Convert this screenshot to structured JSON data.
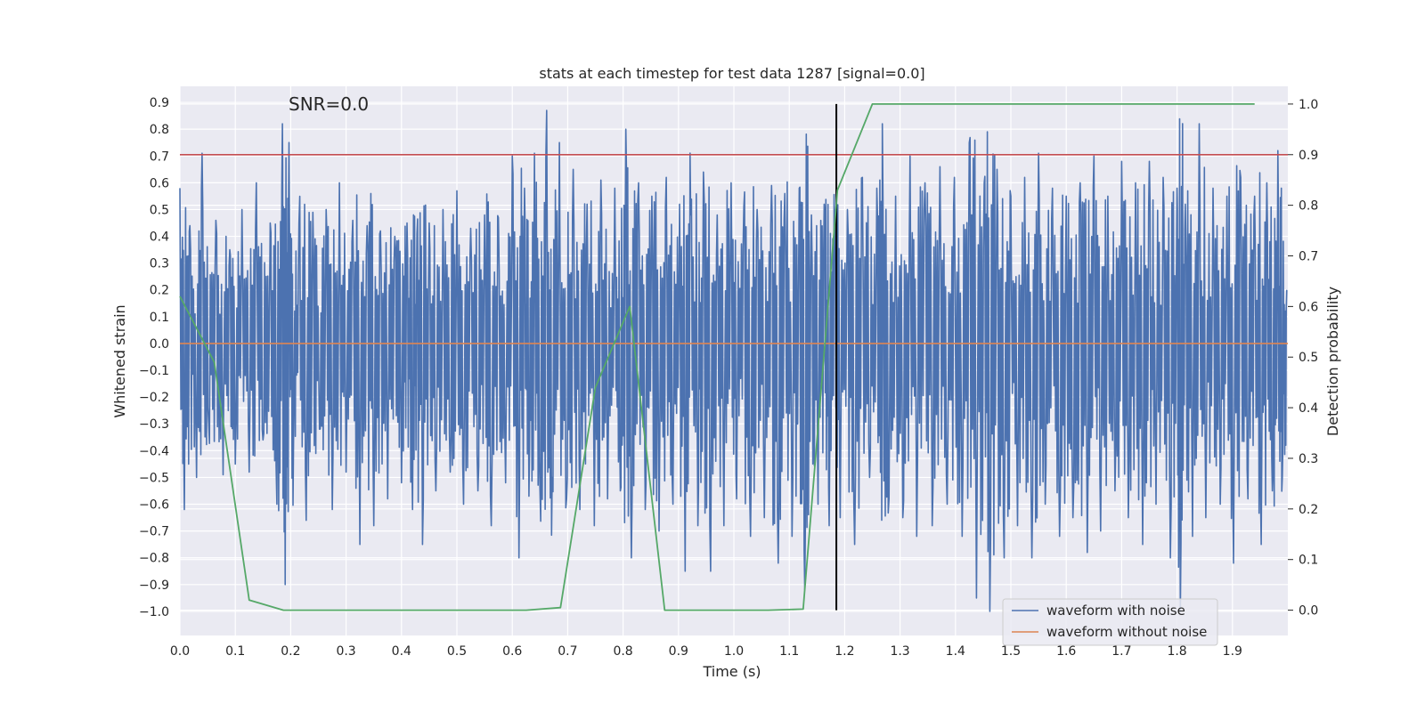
{
  "chart_data": {
    "type": "line",
    "title": "stats at each timestep for test data 1287 [signal=0.0]",
    "annotation": "SNR=0.0",
    "xlabel": "Time (s)",
    "ylabel": "Whitened strain",
    "ylabel_right": "Detection probability",
    "xlim": [
      0.0,
      2.0
    ],
    "ylim": [
      -1.09,
      0.96
    ],
    "ylim_right": [
      -0.05,
      1.035
    ],
    "x_ticks": [
      "0.0",
      "0.1",
      "0.2",
      "0.3",
      "0.4",
      "0.5",
      "0.6",
      "0.7",
      "0.8",
      "0.9",
      "1.0",
      "1.1",
      "1.2",
      "1.3",
      "1.4",
      "1.5",
      "1.6",
      "1.7",
      "1.8",
      "1.9"
    ],
    "y_ticks": [
      "0.9",
      "0.8",
      "0.7",
      "0.6",
      "0.5",
      "0.4",
      "0.3",
      "0.2",
      "0.1",
      "0.0",
      "-0.1",
      "-0.2",
      "-0.3",
      "-0.4",
      "-0.5",
      "-0.6",
      "-0.7",
      "-0.8",
      "-0.9",
      "-1.0"
    ],
    "y_ticks_right": [
      "1.0",
      "0.9",
      "0.8",
      "0.7",
      "0.6",
      "0.5",
      "0.4",
      "0.3",
      "0.2",
      "0.1",
      "0.0"
    ],
    "threshold": {
      "value_right": 0.9,
      "color": "#c44e52"
    },
    "marker": {
      "x": 1.185,
      "color": "#000000"
    },
    "series": [
      {
        "name": "waveform with noise",
        "color": "#4c72b0",
        "note": "approximate envelope samples (time, strain) estimated from the figure",
        "points": [
          [
            0.0,
            0.58
          ],
          [
            0.008,
            -0.62
          ],
          [
            0.018,
            0.44
          ],
          [
            0.03,
            -0.5
          ],
          [
            0.04,
            0.71
          ],
          [
            0.052,
            -0.3
          ],
          [
            0.065,
            0.46
          ],
          [
            0.078,
            -0.49
          ],
          [
            0.09,
            0.35
          ],
          [
            0.1,
            -0.45
          ],
          [
            0.112,
            0.5
          ],
          [
            0.125,
            -0.48
          ],
          [
            0.138,
            0.6
          ],
          [
            0.15,
            -0.36
          ],
          [
            0.163,
            0.45
          ],
          [
            0.175,
            -0.6
          ],
          [
            0.185,
            0.82
          ],
          [
            0.19,
            -0.9
          ],
          [
            0.197,
            0.75
          ],
          [
            0.205,
            -0.4
          ],
          [
            0.215,
            0.45
          ],
          [
            0.228,
            -0.66
          ],
          [
            0.24,
            0.49
          ],
          [
            0.252,
            -0.32
          ],
          [
            0.264,
            0.5
          ],
          [
            0.275,
            -0.62
          ],
          [
            0.288,
            0.6
          ],
          [
            0.3,
            -0.48
          ],
          [
            0.312,
            0.46
          ],
          [
            0.325,
            -0.75
          ],
          [
            0.338,
            0.44
          ],
          [
            0.35,
            -0.68
          ],
          [
            0.362,
            0.42
          ],
          [
            0.375,
            -0.58
          ],
          [
            0.388,
            0.4
          ],
          [
            0.4,
            -0.52
          ],
          [
            0.41,
            0.45
          ],
          [
            0.42,
            -0.62
          ],
          [
            0.428,
            0.41
          ],
          [
            0.438,
            -0.75
          ],
          [
            0.45,
            0.45
          ],
          [
            0.462,
            -0.55
          ],
          [
            0.475,
            0.5
          ],
          [
            0.488,
            -0.48
          ],
          [
            0.5,
            0.57
          ],
          [
            0.512,
            -0.6
          ],
          [
            0.525,
            0.43
          ],
          [
            0.538,
            -0.55
          ],
          [
            0.55,
            0.48
          ],
          [
            0.562,
            -0.68
          ],
          [
            0.575,
            0.47
          ],
          [
            0.588,
            -0.52
          ],
          [
            0.6,
            0.7
          ],
          [
            0.612,
            -0.8
          ],
          [
            0.622,
            0.58
          ],
          [
            0.63,
            -0.57
          ],
          [
            0.64,
            0.71
          ],
          [
            0.65,
            -0.55
          ],
          [
            0.662,
            0.87
          ],
          [
            0.672,
            -0.5
          ],
          [
            0.685,
            0.75
          ],
          [
            0.698,
            -0.58
          ],
          [
            0.71,
            0.65
          ],
          [
            0.722,
            -0.62
          ],
          [
            0.735,
            0.52
          ],
          [
            0.748,
            -0.68
          ],
          [
            0.76,
            0.61
          ],
          [
            0.772,
            -0.58
          ],
          [
            0.785,
            0.58
          ],
          [
            0.795,
            -0.55
          ],
          [
            0.805,
            0.8
          ],
          [
            0.815,
            -0.8
          ],
          [
            0.828,
            0.6
          ],
          [
            0.84,
            -0.62
          ],
          [
            0.852,
            0.55
          ],
          [
            0.865,
            -0.7
          ],
          [
            0.878,
            0.62
          ],
          [
            0.89,
            -0.6
          ],
          [
            0.902,
            0.52
          ],
          [
            0.912,
            -0.85
          ],
          [
            0.922,
            0.48
          ],
          [
            0.935,
            -0.68
          ],
          [
            0.945,
            0.64
          ],
          [
            0.958,
            -0.85
          ],
          [
            0.97,
            0.48
          ],
          [
            0.982,
            -0.68
          ],
          [
            0.995,
            0.6
          ],
          [
            1.005,
            -0.58
          ],
          [
            1.018,
            0.51
          ],
          [
            1.03,
            -0.72
          ],
          [
            1.042,
            0.5
          ],
          [
            1.055,
            -0.65
          ],
          [
            1.068,
            0.59
          ],
          [
            1.08,
            -0.82
          ],
          [
            1.092,
            0.56
          ],
          [
            1.105,
            -0.72
          ],
          [
            1.118,
            0.58
          ],
          [
            1.128,
            -0.92
          ],
          [
            1.14,
            0.48
          ],
          [
            1.152,
            -0.6
          ],
          [
            1.163,
            0.52
          ],
          [
            1.172,
            -0.68
          ],
          [
            1.182,
            0.42
          ],
          [
            1.192,
            -0.65
          ],
          [
            1.205,
            0.5
          ],
          [
            1.218,
            -0.75
          ],
          [
            1.232,
            0.62
          ],
          [
            1.245,
            -0.5
          ],
          [
            1.258,
            0.58
          ],
          [
            1.268,
            0.82
          ],
          [
            1.28,
            -0.58
          ],
          [
            1.292,
            0.55
          ],
          [
            1.305,
            -0.65
          ],
          [
            1.318,
            0.7
          ],
          [
            1.33,
            -0.72
          ],
          [
            1.345,
            0.6
          ],
          [
            1.358,
            -0.68
          ],
          [
            1.372,
            0.66
          ],
          [
            1.385,
            -0.6
          ],
          [
            1.398,
            0.62
          ],
          [
            1.412,
            -0.72
          ],
          [
            1.425,
            0.75
          ],
          [
            1.438,
            -0.95
          ],
          [
            1.452,
            0.6
          ],
          [
            1.462,
            -1.0
          ],
          [
            1.475,
            0.65
          ],
          [
            1.488,
            -0.8
          ],
          [
            1.5,
            0.55
          ],
          [
            1.512,
            -0.68
          ],
          [
            1.525,
            0.62
          ],
          [
            1.538,
            -0.8
          ],
          [
            1.55,
            0.71
          ],
          [
            1.562,
            -0.6
          ],
          [
            1.575,
            0.58
          ],
          [
            1.588,
            -0.72
          ],
          [
            1.6,
            0.55
          ],
          [
            1.612,
            -0.65
          ],
          [
            1.625,
            0.6
          ],
          [
            1.638,
            -0.78
          ],
          [
            1.65,
            0.7
          ],
          [
            1.662,
            -0.7
          ],
          [
            1.675,
            0.55
          ],
          [
            1.688,
            -0.55
          ],
          [
            1.7,
            0.68
          ],
          [
            1.712,
            -0.65
          ],
          [
            1.725,
            0.6
          ],
          [
            1.738,
            -0.75
          ],
          [
            1.75,
            0.68
          ],
          [
            1.762,
            -0.6
          ],
          [
            1.775,
            0.62
          ],
          [
            1.788,
            -0.8
          ],
          [
            1.8,
            0.58
          ],
          [
            1.806,
            -1.0
          ],
          [
            1.815,
            0.52
          ],
          [
            1.828,
            -0.72
          ],
          [
            1.84,
            0.82
          ],
          [
            1.852,
            -0.65
          ],
          [
            1.865,
            0.58
          ],
          [
            1.878,
            -0.6
          ],
          [
            1.89,
            0.55
          ],
          [
            1.902,
            -0.82
          ],
          [
            1.915,
            0.62
          ],
          [
            1.928,
            -0.58
          ],
          [
            1.94,
            0.55
          ],
          [
            1.952,
            -0.75
          ],
          [
            1.962,
            0.6
          ],
          [
            1.972,
            -0.55
          ],
          [
            1.982,
            0.72
          ],
          [
            1.99,
            -0.5
          ],
          [
            1.998,
            0.2
          ]
        ]
      },
      {
        "name": "waveform without noise",
        "color": "#dd8452",
        "constant_value": 0.0
      },
      {
        "name": "detection probability",
        "color": "#55a868",
        "axis": "right",
        "x": [
          0.0,
          0.062,
          0.125,
          0.187,
          0.625,
          0.687,
          0.75,
          0.812,
          0.875,
          0.937,
          1.062,
          1.125,
          1.187,
          1.25,
          1.94
        ],
        "values": [
          0.62,
          0.49,
          0.02,
          0.0,
          0.0,
          0.005,
          0.44,
          0.6,
          0.0,
          0.0,
          0.0,
          0.002,
          0.83,
          1.0,
          1.0
        ]
      }
    ],
    "legend": {
      "position": "lower-right",
      "entries": [
        {
          "label": "waveform with noise",
          "color": "#4c72b0"
        },
        {
          "label": "waveform without noise",
          "color": "#dd8452"
        }
      ]
    },
    "style": {
      "plot_background": "#eaeaf2",
      "grid_color": "#ffffff"
    }
  }
}
